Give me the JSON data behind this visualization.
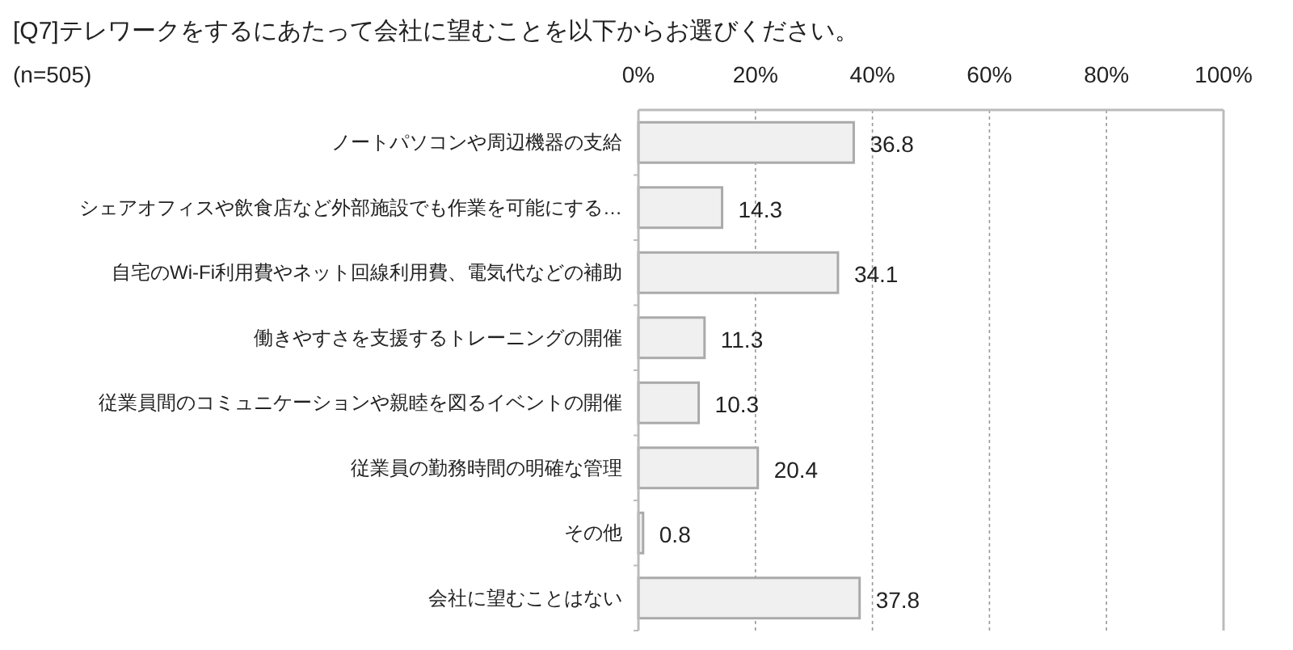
{
  "chart_data": {
    "type": "bar",
    "orientation": "horizontal",
    "title": "[Q7]テレワークをするにあたって会社に望むことを以下からお選びください。",
    "subtitle": "(n=505)",
    "categories": [
      "ノートパソコンや周辺機器の支給",
      "シェアオフィスや飲食店など外部施設でも作業を可能にする…",
      "自宅のWi-Fi利用費やネット回線利用費、電気代などの補助",
      "働きやすさを支援するトレーニングの開催",
      "従業員間のコミュニケーションや親睦を図るイベントの開催",
      "従業員の勤務時間の明確な管理",
      "その他",
      "会社に望むことはない"
    ],
    "values": [
      36.8,
      14.3,
      34.1,
      11.3,
      10.3,
      20.4,
      0.8,
      37.8
    ],
    "color": "#f0f0f0",
    "data_labels": true,
    "grid": "x",
    "xlim": [
      0,
      100
    ],
    "xticks": [
      {
        "value": 0,
        "label": "0%"
      },
      {
        "value": 20,
        "label": "20%"
      },
      {
        "value": 40,
        "label": "40%"
      },
      {
        "value": 60,
        "label": "60%"
      },
      {
        "value": 80,
        "label": "80%"
      },
      {
        "value": 100,
        "label": "100%"
      }
    ]
  }
}
